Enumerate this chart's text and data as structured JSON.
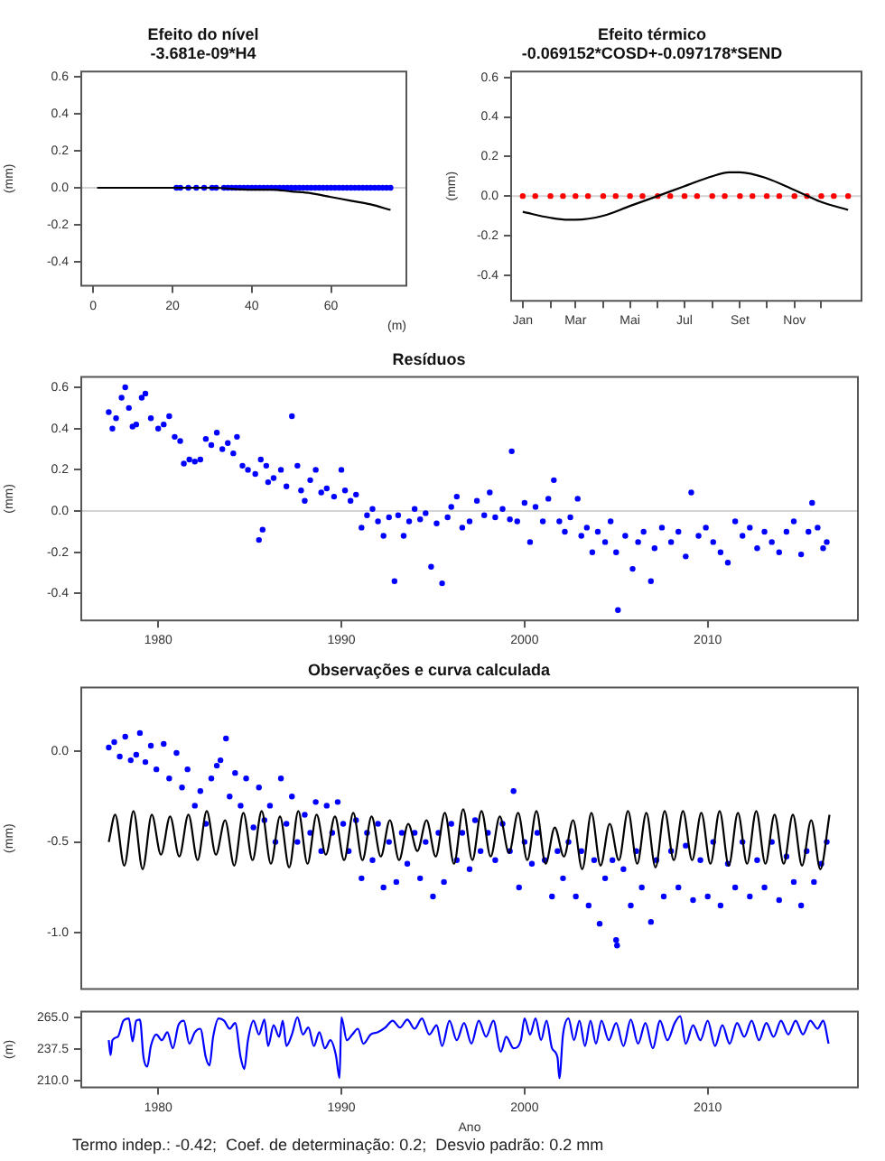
{
  "chart_data": [
    {
      "type": "scatter",
      "title": "Efeito do nível",
      "subtitle": "-3.681e-09*H4",
      "xlabel": "(m)",
      "ylabel": "(mm)",
      "xlim": [
        -3,
        79
      ],
      "ylim": [
        -0.53,
        0.63
      ],
      "xticks": [
        0,
        20,
        40,
        60
      ],
      "yticks": [
        {
          "value": -0.4,
          "label": "-0.4"
        },
        {
          "value": -0.2,
          "label": "-0.2"
        },
        {
          "value": 0,
          "label": "0.0"
        },
        0.2,
        0.4,
        0.6
      ],
      "ref_lines": [
        {
          "axis": "y",
          "value": 0,
          "color": "#d3d3d3"
        }
      ],
      "series": [
        {
          "color": "#0000ff",
          "marker": "circle",
          "x": [
            21,
            22,
            24,
            26,
            28,
            30,
            31,
            33,
            34,
            35,
            36,
            37,
            38,
            39,
            40,
            41,
            42,
            43,
            44,
            45,
            46,
            47,
            48,
            49,
            50,
            51,
            52,
            53,
            54,
            55,
            56,
            57,
            58,
            59,
            60,
            61,
            62,
            63,
            64,
            65,
            66,
            67,
            68,
            69,
            70,
            71,
            72,
            73,
            74,
            75
          ],
          "values": [
            0,
            0,
            0,
            0,
            0,
            0,
            0,
            0,
            0,
            0,
            0,
            0,
            0,
            0,
            0,
            0,
            0,
            0,
            0,
            0,
            0,
            0,
            0,
            0,
            0,
            0,
            0,
            0,
            0,
            0,
            0,
            0,
            0,
            0,
            0,
            0,
            0,
            0,
            0,
            0,
            0,
            0,
            0,
            0,
            0,
            0,
            0,
            0,
            0,
            0
          ]
        },
        {
          "type": "line",
          "color": "#000000",
          "x": [
            1,
            10,
            20,
            30,
            40,
            45,
            50,
            55,
            60,
            65,
            70,
            75
          ],
          "values": [
            0,
            0,
            0,
            0,
            -0.01,
            -0.01,
            -0.02,
            -0.03,
            -0.05,
            -0.07,
            -0.09,
            -0.12
          ]
        }
      ]
    },
    {
      "type": "scatter",
      "title": "Efeito térmico",
      "subtitle": "-0.069152*COSD+-0.097178*SEND",
      "ylabel": "(mm)",
      "xlim": [
        "2000-12-19",
        "2002-01-15"
      ],
      "ylim": [
        -0.53,
        0.63
      ],
      "xticks": [
        {
          "value": "--01-01",
          "label": "Jan"
        },
        {
          "value": "--02-01",
          "label": null
        },
        {
          "value": "--03-01",
          "label": "Mar"
        },
        {
          "value": "--04-01",
          "label": null
        },
        {
          "value": "--05-01",
          "label": "Mai"
        },
        {
          "value": "--06-01",
          "label": null
        },
        {
          "value": "--07-01",
          "label": "Jul"
        },
        {
          "value": "--08-01",
          "label": null
        },
        {
          "value": "--09-01",
          "label": "Set"
        },
        {
          "value": "--10-01",
          "label": null
        },
        {
          "value": "--11-01",
          "label": "Nov"
        },
        {
          "value": "--12-01",
          "label": null
        }
      ],
      "yticks": [
        {
          "value": -0.4,
          "label": "-0.4"
        },
        {
          "value": -0.2,
          "label": "-0.2"
        },
        {
          "value": 0,
          "label": "0.0"
        },
        0.2,
        0.4,
        0.6
      ],
      "ref_lines": [
        {
          "axis": "y",
          "value": 0,
          "color": "#d3d3d3"
        }
      ],
      "series": [
        {
          "color": "#ff0000",
          "marker": "circle",
          "x": [
            "--01-01",
            "--01-15",
            "--02-01",
            "--02-15",
            "--03-01",
            "--03-15",
            "--04-01",
            "--04-15",
            "--05-01",
            "--05-15",
            "--06-01",
            "--06-15",
            "--07-01",
            "--07-15",
            "--08-01",
            "--08-15",
            "--09-01",
            "--09-15",
            "--10-01",
            "--10-15",
            "--11-01",
            "--11-15",
            "--12-01",
            "--12-15",
            "--12-31"
          ],
          "values": [
            0,
            0,
            0,
            0,
            0,
            0,
            0,
            0,
            0,
            0,
            0,
            0,
            0,
            0,
            0,
            0,
            0,
            0,
            0,
            0,
            0,
            0,
            0,
            0,
            0
          ]
        },
        {
          "type": "line",
          "color": "#000000",
          "x": [
            "--01-01",
            "--02-01",
            "--02-21",
            "--03-01",
            "--04-01",
            "--05-01",
            "--06-01",
            "--07-01",
            "--08-01",
            "--08-20",
            "--09-01",
            "--10-01",
            "--11-01",
            "--11-16",
            "--12-01",
            "--12-31"
          ],
          "values": [
            -0.08,
            -0.11,
            -0.12,
            -0.12,
            -0.1,
            -0.05,
            0,
            0.05,
            0.1,
            0.12,
            0.12,
            0.09,
            0.03,
            0,
            -0.03,
            -0.07
          ]
        }
      ]
    },
    {
      "type": "scatter",
      "title": "Resíduos",
      "ylabel": "(mm)",
      "xlim": [
        1975.8,
        2018.2
      ],
      "ylim": [
        -0.53,
        0.65
      ],
      "xticks": [
        1980,
        1990,
        2000,
        2010
      ],
      "yticks": [
        {
          "value": -0.4,
          "label": "-0.4"
        },
        {
          "value": -0.2,
          "label": "-0.2"
        },
        {
          "value": 0,
          "label": "0.0"
        },
        0.2,
        0.4,
        0.6
      ],
      "ref_lines": [
        {
          "axis": "y",
          "value": 0,
          "color": "#d3d3d3"
        }
      ],
      "series": [
        {
          "color": "#0000ff",
          "marker": "circle",
          "x": [
            1977.3,
            1977.5,
            1977.7,
            1978.0,
            1978.2,
            1978.4,
            1978.6,
            1978.8,
            1979.1,
            1979.3,
            1979.6,
            1980.0,
            1980.3,
            1980.6,
            1980.9,
            1981.2,
            1981.4,
            1981.7,
            1982.0,
            1982.3,
            1982.6,
            1982.9,
            1983.2,
            1983.5,
            1983.8,
            1984.1,
            1984.3,
            1984.6,
            1984.9,
            1985.3,
            1985.6,
            1985.9,
            1985.5,
            1985.7,
            1986.0,
            1986.3,
            1986.7,
            1987.0,
            1987.3,
            1987.6,
            1987.8,
            1988.0,
            1988.3,
            1988.6,
            1988.9,
            1989.2,
            1989.6,
            1990.0,
            1990.2,
            1990.5,
            1990.8,
            1991.1,
            1991.4,
            1991.7,
            1992.0,
            1992.3,
            1992.6,
            1992.9,
            1993.1,
            1993.4,
            1993.7,
            1994.0,
            1994.3,
            1994.6,
            1994.9,
            1995.2,
            1995.5,
            1995.8,
            1996.0,
            1996.3,
            1996.6,
            1997.0,
            1997.4,
            1997.8,
            1998.1,
            1998.4,
            1998.8,
            1999.2,
            1999.3,
            1999.6,
            2000.0,
            2000.3,
            2000.6,
            2001.0,
            2001.3,
            2001.6,
            2001.9,
            2002.2,
            2002.5,
            2002.9,
            2003.1,
            2003.4,
            2003.7,
            2004.0,
            2004.4,
            2004.7,
            2005.0,
            2005.1,
            2005.5,
            2005.9,
            2006.2,
            2006.5,
            2006.9,
            2007.1,
            2007.5,
            2008.0,
            2008.4,
            2008.8,
            2009.1,
            2009.5,
            2009.9,
            2010.3,
            2010.7,
            2011.1,
            2011.5,
            2011.9,
            2012.3,
            2012.7,
            2013.1,
            2013.5,
            2013.9,
            2014.3,
            2014.7,
            2015.1,
            2015.5,
            2015.7,
            2016.0,
            2016.3,
            2016.5
          ],
          "values": [
            0.48,
            0.4,
            0.45,
            0.55,
            0.6,
            0.5,
            0.41,
            0.42,
            0.55,
            0.57,
            0.45,
            0.4,
            0.42,
            0.46,
            0.36,
            0.34,
            0.23,
            0.25,
            0.24,
            0.25,
            0.35,
            0.32,
            0.38,
            0.3,
            0.33,
            0.28,
            0.36,
            0.22,
            0.2,
            0.18,
            0.25,
            0.22,
            -0.14,
            -0.09,
            0.14,
            0.16,
            0.2,
            0.12,
            0.46,
            0.22,
            0.1,
            0.05,
            0.15,
            0.2,
            0.09,
            0.11,
            0.07,
            0.2,
            0.1,
            0.05,
            0.08,
            -0.08,
            -0.02,
            0.01,
            -0.05,
            -0.12,
            -0.03,
            -0.34,
            -0.02,
            -0.12,
            -0.05,
            0.01,
            -0.04,
            -0.01,
            -0.27,
            -0.06,
            -0.35,
            -0.03,
            0.02,
            0.07,
            -0.08,
            -0.05,
            0.05,
            -0.02,
            0.09,
            -0.03,
            0.01,
            -0.04,
            0.29,
            -0.05,
            0.04,
            -0.15,
            0.02,
            -0.05,
            0.06,
            0.15,
            -0.05,
            -0.1,
            -0.03,
            0.06,
            -0.12,
            -0.08,
            -0.2,
            -0.1,
            -0.15,
            -0.05,
            -0.2,
            -0.48,
            -0.12,
            -0.28,
            -0.15,
            -0.1,
            -0.34,
            -0.18,
            -0.08,
            -0.15,
            -0.1,
            -0.22,
            0.09,
            -0.12,
            -0.08,
            -0.15,
            -0.2,
            -0.25,
            -0.05,
            -0.12,
            -0.08,
            -0.18,
            -0.1,
            -0.15,
            -0.2,
            -0.1,
            -0.05,
            -0.21,
            -0.1,
            0.04,
            -0.08,
            -0.18,
            -0.15
          ]
        }
      ]
    },
    {
      "type": "scatter",
      "title": "Observações e curva calculada",
      "ylabel": "(mm)",
      "xlim": [
        1975.8,
        2018.2
      ],
      "ylim": [
        -1.31,
        0.35
      ],
      "tick_labels": "y",
      "yticks": [
        {
          "value": -1,
          "label": "-1.0"
        },
        -0.5,
        {
          "value": 0,
          "label": "0.0"
        }
      ],
      "series": [
        {
          "color": "#0000ff",
          "marker": "circle",
          "x": [
            1977.3,
            1977.6,
            1977.9,
            1978.2,
            1978.5,
            1978.8,
            1979.0,
            1979.3,
            1979.6,
            1979.9,
            1980.3,
            1980.6,
            1981.0,
            1981.3,
            1981.6,
            1982.0,
            1982.3,
            1982.6,
            1982.9,
            1983.2,
            1983.4,
            1983.7,
            1983.9,
            1984.2,
            1984.5,
            1984.8,
            1985.2,
            1985.5,
            1985.8,
            1986.1,
            1986.4,
            1986.7,
            1987.0,
            1987.3,
            1987.6,
            1988.0,
            1988.3,
            1988.6,
            1988.9,
            1989.2,
            1989.5,
            1989.8,
            1990.1,
            1990.4,
            1990.8,
            1991.1,
            1991.4,
            1991.7,
            1992.0,
            1992.3,
            1992.6,
            1993.0,
            1993.3,
            1993.6,
            1994.0,
            1994.3,
            1994.6,
            1995.0,
            1995.3,
            1995.6,
            1996.0,
            1996.3,
            1996.6,
            1997.0,
            1997.3,
            1997.6,
            1998.0,
            1998.4,
            1998.8,
            1999.2,
            1999.4,
            1999.7,
            2000.0,
            2000.4,
            2000.7,
            2001.1,
            2001.5,
            2001.8,
            2002.1,
            2002.4,
            2002.8,
            2003.1,
            2003.5,
            2003.8,
            2004.1,
            2004.4,
            2004.8,
            2005.0,
            2005.05,
            2005.4,
            2005.8,
            2006.1,
            2006.4,
            2006.9,
            2007.2,
            2007.6,
            2008.0,
            2008.4,
            2008.8,
            2009.2,
            2009.6,
            2010.0,
            2010.3,
            2010.7,
            2011.1,
            2011.5,
            2011.9,
            2012.3,
            2012.7,
            2013.1,
            2013.5,
            2013.9,
            2014.3,
            2014.7,
            2015.1,
            2015.4,
            2015.8,
            2016.2,
            2016.5
          ],
          "values": [
            0.02,
            0.05,
            -0.03,
            0.08,
            -0.05,
            -0.02,
            0.1,
            -0.06,
            0.03,
            -0.1,
            0.04,
            -0.15,
            -0.01,
            -0.2,
            -0.1,
            -0.3,
            -0.22,
            -0.4,
            -0.15,
            -0.08,
            -0.05,
            0.07,
            -0.25,
            -0.12,
            -0.3,
            -0.15,
            -0.42,
            -0.2,
            -0.38,
            -0.3,
            -0.5,
            -0.15,
            -0.4,
            -0.25,
            -0.5,
            -0.35,
            -0.45,
            -0.28,
            -0.55,
            -0.3,
            -0.45,
            -0.28,
            -0.4,
            -0.55,
            -0.38,
            -0.7,
            -0.45,
            -0.6,
            -0.4,
            -0.75,
            -0.5,
            -0.72,
            -0.45,
            -0.62,
            -0.45,
            -0.7,
            -0.5,
            -0.8,
            -0.45,
            -0.72,
            -0.4,
            -0.6,
            -0.45,
            -0.65,
            -0.38,
            -0.55,
            -0.45,
            -0.6,
            -0.4,
            -0.55,
            -0.22,
            -0.75,
            -0.5,
            -0.62,
            -0.45,
            -0.6,
            -0.8,
            -0.55,
            -0.7,
            -0.5,
            -0.8,
            -0.55,
            -0.85,
            -0.6,
            -0.95,
            -0.7,
            -0.6,
            -1.04,
            -1.07,
            -0.65,
            -0.85,
            -0.55,
            -0.75,
            -0.94,
            -0.6,
            -0.8,
            -0.55,
            -0.75,
            -0.52,
            -0.82,
            -0.6,
            -0.8,
            -0.5,
            -0.85,
            -0.62,
            -0.75,
            -0.5,
            -0.8,
            -0.6,
            -0.75,
            -0.5,
            -0.82,
            -0.58,
            -0.72,
            -0.85,
            -0.55,
            -0.72,
            -0.62,
            -0.5
          ]
        },
        {
          "type": "line",
          "color": "#000000",
          "x": [
            1977.3,
            1977.65,
            1978.15,
            1978.65,
            1979.15,
            1979.65,
            1980.15,
            1980.65,
            1981.15,
            1981.65,
            1982.15,
            1982.65,
            1983.15,
            1983.65,
            1984.15,
            1984.65,
            1985.15,
            1985.65,
            1986.15,
            1986.65,
            1987.15,
            1987.65,
            1988.15,
            1988.65,
            1989.15,
            1989.65,
            1990.15,
            1990.65,
            1991.15,
            1991.65,
            1992.15,
            1992.65,
            1993.15,
            1993.65,
            1994.15,
            1994.65,
            1995.15,
            1995.65,
            1996.15,
            1996.65,
            1997.15,
            1997.65,
            1998.15,
            1998.65,
            1999.15,
            1999.65,
            2000.15,
            2000.65,
            2001.15,
            2001.65,
            2002.15,
            2002.65,
            2003.15,
            2003.65,
            2004.15,
            2004.65,
            2005.15,
            2005.65,
            2006.15,
            2006.65,
            2007.15,
            2007.65,
            2008.15,
            2008.65,
            2009.15,
            2009.65,
            2010.15,
            2010.65,
            2011.15,
            2011.65,
            2012.15,
            2012.65,
            2013.15,
            2013.65,
            2014.15,
            2014.65,
            2015.15,
            2015.65,
            2016.15,
            2016.65
          ],
          "values": [
            -0.5,
            -0.35,
            -0.63,
            -0.33,
            -0.65,
            -0.35,
            -0.57,
            -0.36,
            -0.58,
            -0.35,
            -0.6,
            -0.33,
            -0.57,
            -0.38,
            -0.63,
            -0.34,
            -0.6,
            -0.33,
            -0.62,
            -0.36,
            -0.64,
            -0.33,
            -0.62,
            -0.35,
            -0.57,
            -0.36,
            -0.6,
            -0.34,
            -0.6,
            -0.36,
            -0.58,
            -0.38,
            -0.6,
            -0.4,
            -0.55,
            -0.38,
            -0.58,
            -0.34,
            -0.62,
            -0.32,
            -0.6,
            -0.33,
            -0.58,
            -0.36,
            -0.56,
            -0.34,
            -0.6,
            -0.33,
            -0.62,
            -0.42,
            -0.58,
            -0.38,
            -0.65,
            -0.34,
            -0.63,
            -0.4,
            -0.6,
            -0.33,
            -0.62,
            -0.34,
            -0.64,
            -0.33,
            -0.6,
            -0.33,
            -0.6,
            -0.34,
            -0.62,
            -0.33,
            -0.63,
            -0.34,
            -0.62,
            -0.33,
            -0.62,
            -0.35,
            -0.62,
            -0.35,
            -0.63,
            -0.38,
            -0.65,
            -0.35
          ]
        }
      ]
    },
    {
      "type": "line",
      "xlabel": "Ano",
      "ylabel": "(m)",
      "xlim": [
        1975.8,
        2018.2
      ],
      "ylim": [
        204,
        270
      ],
      "xticks": [
        1980,
        1990,
        2000,
        2010
      ],
      "yticks": [
        {
          "value": 210,
          "label": "210.0"
        },
        237.5,
        {
          "value": 265,
          "label": "265.0"
        }
      ],
      "annotations": [
        "Termo indep.: -0.42;  Coef. de determinação: 0.2;  Desvio padrão: 0.2 mm"
      ],
      "series": [
        {
          "color": "#0000ff",
          "x": [
            1977.3,
            1977.4,
            1977.5,
            1977.8,
            1978.1,
            1978.4,
            1978.6,
            1978.8,
            1979.0,
            1979.2,
            1979.4,
            1979.6,
            1979.9,
            1980.2,
            1980.5,
            1980.8,
            1981.1,
            1981.4,
            1981.7,
            1982.0,
            1982.3,
            1982.6,
            1982.8,
            1983.0,
            1983.3,
            1983.6,
            1983.9,
            1984.2,
            1984.5,
            1984.7,
            1984.9,
            1985.2,
            1985.5,
            1985.8,
            1986.0,
            1986.3,
            1986.6,
            1986.8,
            1987.0,
            1987.3,
            1987.6,
            1987.9,
            1988.2,
            1988.5,
            1988.8,
            1989.1,
            1989.4,
            1989.7,
            1989.9,
            1990.0,
            1990.3,
            1990.6,
            1990.9,
            1991.2,
            1991.6,
            1992.0,
            1992.4,
            1992.8,
            1993.2,
            1993.6,
            1994.0,
            1994.4,
            1994.8,
            1995.2,
            1995.5,
            1995.9,
            1996.3,
            1996.7,
            1997.1,
            1997.5,
            1997.9,
            1998.3,
            1998.7,
            1999.0,
            1999.4,
            1999.8,
            2000.0,
            2000.3,
            2000.6,
            2000.9,
            2001.2,
            2001.5,
            2001.8,
            2001.9,
            2002.1,
            2002.4,
            2002.7,
            2003.0,
            2003.3,
            2003.6,
            2003.9,
            2004.2,
            2004.6,
            2005.0,
            2005.4,
            2005.8,
            2006.2,
            2006.6,
            2007.0,
            2007.4,
            2007.8,
            2008.2,
            2008.5,
            2008.8,
            2009.2,
            2009.6,
            2010.0,
            2010.4,
            2010.8,
            2011.2,
            2011.6,
            2012.0,
            2012.4,
            2012.8,
            2013.2,
            2013.6,
            2014.0,
            2014.4,
            2014.8,
            2015.2,
            2015.6,
            2016.0,
            2016.3,
            2016.6
          ],
          "values": [
            245,
            232,
            245,
            248,
            262,
            264,
            244,
            262,
            263,
            230,
            222,
            240,
            250,
            245,
            252,
            238,
            258,
            262,
            242,
            252,
            255,
            230,
            223,
            248,
            264,
            262,
            255,
            260,
            230,
            220,
            245,
            262,
            250,
            263,
            240,
            258,
            248,
            262,
            240,
            250,
            265,
            250,
            256,
            240,
            252,
            238,
            245,
            232,
            212,
            265,
            245,
            250,
            255,
            242,
            250,
            252,
            256,
            262,
            256,
            263,
            255,
            264,
            250,
            258,
            240,
            262,
            245,
            260,
            242,
            262,
            248,
            262,
            235,
            248,
            238,
            245,
            264,
            250,
            264,
            245,
            262,
            238,
            230,
            212,
            250,
            264,
            245,
            262,
            240,
            262,
            242,
            262,
            245,
            260,
            240,
            263,
            242,
            260,
            238,
            262,
            245,
            260,
            266,
            242,
            258,
            245,
            262,
            240,
            258,
            242,
            260,
            248,
            262,
            245,
            260,
            248,
            262,
            250,
            262,
            250,
            262,
            255,
            262,
            242
          ]
        }
      ]
    }
  ]
}
